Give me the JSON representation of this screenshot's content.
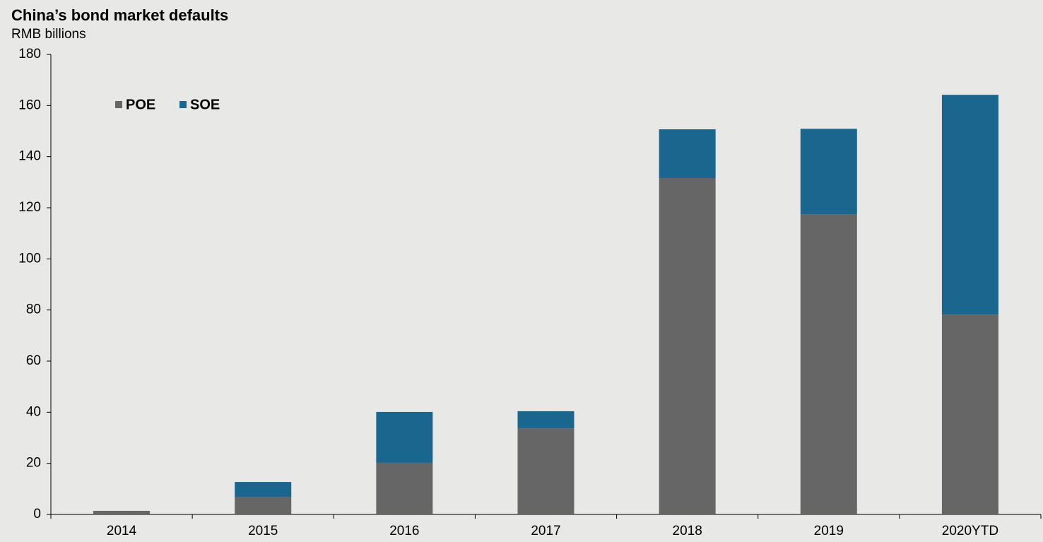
{
  "chart_data": {
    "type": "stacked_bar",
    "title": "China’s bond market defaults",
    "subtitle": "RMB billions",
    "categories": [
      "2014",
      "2015",
      "2016",
      "2017",
      "2018",
      "2019",
      "2020YTD"
    ],
    "series": [
      {
        "name": "POE",
        "color": "#666666",
        "values": [
          1.4,
          6.9,
          20.2,
          33.7,
          131.6,
          117.5,
          78.2
        ]
      },
      {
        "name": "SOE",
        "color": "#1a668f",
        "values": [
          0,
          5.8,
          19.9,
          6.7,
          19.1,
          33.4,
          86.0
        ]
      }
    ],
    "ylim": [
      0,
      180
    ],
    "yticks": [
      0,
      20,
      40,
      60,
      80,
      100,
      120,
      140,
      160,
      180
    ],
    "grid": false,
    "legend": "top-left"
  }
}
